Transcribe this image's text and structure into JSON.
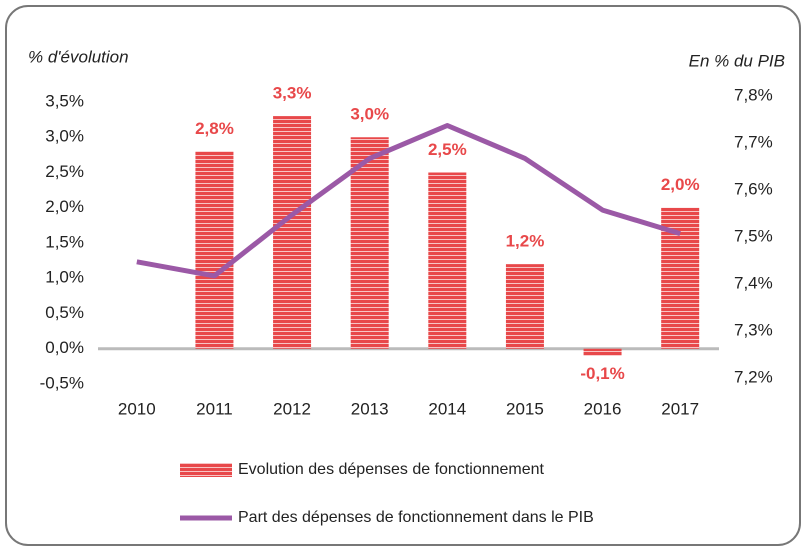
{
  "chart_data": {
    "type": "bar_line",
    "y_label": "% d'évolution",
    "y2_label": "En % du PIB",
    "categories": [
      "2010",
      "2011",
      "2012",
      "2013",
      "2014",
      "2015",
      "2016",
      "2017"
    ],
    "series": [
      {
        "name": "Evolution des dépenses de fonctionnement",
        "type": "bar",
        "color": "#e8484a",
        "values": [
          null,
          2.8,
          3.3,
          3.0,
          2.5,
          1.2,
          -0.1,
          2.0
        ],
        "value_labels": [
          null,
          "2,8%",
          "3,3%",
          "3,0%",
          "2,5%",
          "1,2%",
          "-0,1%",
          "2,0%"
        ]
      },
      {
        "name": "Part des dépenses de fonctionnement dans le PIB",
        "type": "line",
        "color": "#9b59a6",
        "axis": "y2",
        "values": [
          7.46,
          7.43,
          7.56,
          7.68,
          7.75,
          7.68,
          7.57,
          7.52
        ]
      }
    ],
    "ylim": [
      -0.5,
      3.5
    ],
    "yticks": [
      {
        "value": -0.5,
        "label": "-0,5%"
      },
      {
        "value": 0,
        "label": "0,0%"
      },
      {
        "value": 0.5,
        "label": "0,5%"
      },
      {
        "value": 1,
        "label": "1,0%"
      },
      {
        "value": 1.5,
        "label": "1,5%"
      },
      {
        "value": 2,
        "label": "2,0%"
      },
      {
        "value": 2.5,
        "label": "2,5%"
      },
      {
        "value": 3,
        "label": "3,0%"
      },
      {
        "value": 3.5,
        "label": "3,5%"
      }
    ],
    "y2lim": [
      7.2,
      7.8
    ],
    "y2ticks": [
      {
        "value": 7.2,
        "label": "7,2%"
      },
      {
        "value": 7.3,
        "label": "7,3%"
      },
      {
        "value": 7.4,
        "label": "7,4%"
      },
      {
        "value": 7.5,
        "label": "7,5%"
      },
      {
        "value": 7.6,
        "label": "7,6%"
      },
      {
        "value": 7.7,
        "label": "7,7%"
      },
      {
        "value": 7.8,
        "label": "7,8%"
      }
    ],
    "legend": "bottom"
  }
}
